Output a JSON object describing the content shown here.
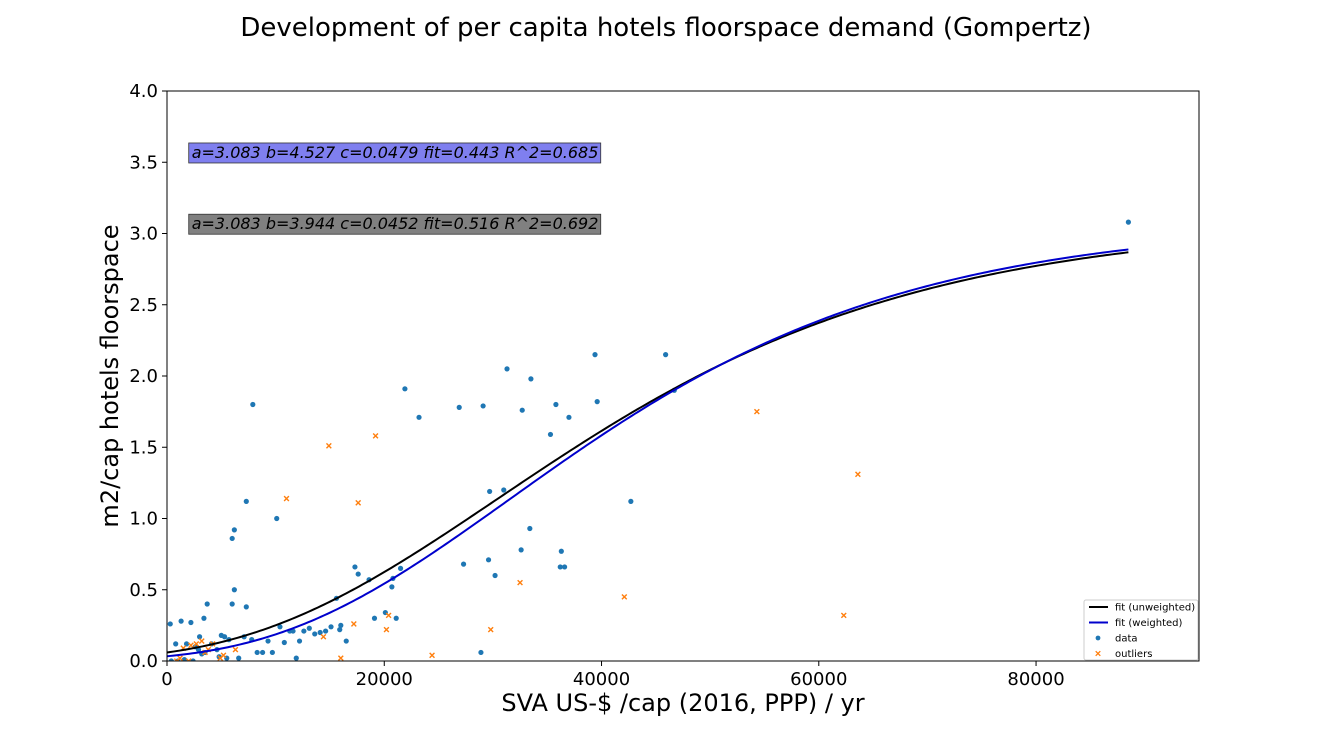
{
  "chart_data": {
    "type": "scatter",
    "title": "Development of per capita hotels floorspace demand (Gompertz)",
    "xlabel": "SVA US-$ /cap (2016, PPP) / yr",
    "ylabel": "m2/cap hotels floorspace",
    "xlim": [
      0,
      95000
    ],
    "ylim": [
      0,
      4.0
    ],
    "xticks": [
      0,
      20000,
      40000,
      60000,
      80000
    ],
    "yticks": [
      0.0,
      0.5,
      1.0,
      1.5,
      2.0,
      2.5,
      3.0,
      3.5,
      4.0
    ],
    "grid": false,
    "legend_position": "bottom-right",
    "annotations": [
      {
        "text": "a=3.083 b=4.527 c=0.0479 fit=0.443 R^2=0.685",
        "color": "#7f7fef",
        "x": 2000,
        "y": 3.53
      },
      {
        "text": "a=3.083 b=3.944 c=0.0452 fit=0.516 R^2=0.692",
        "color": "#808080",
        "x": 2000,
        "y": 3.03
      }
    ],
    "series": [
      {
        "name": "fit (unweighted)",
        "kind": "line",
        "color": "#000000",
        "model": "gompertz",
        "a": 3.083,
        "b": 3.944,
        "c": 0.0452,
        "x_range": [
          0,
          88500
        ]
      },
      {
        "name": "fit (weighted)",
        "kind": "line",
        "color": "#0000cc",
        "model": "gompertz",
        "a": 3.083,
        "b": 4.527,
        "c": 0.0479,
        "x_range": [
          0,
          88500
        ]
      },
      {
        "name": "data",
        "kind": "scatter",
        "marker": "circle",
        "color": "#1f77b4",
        "points": [
          [
            300,
            0.26
          ],
          [
            800,
            0.12
          ],
          [
            1300,
            0.28
          ],
          [
            1800,
            0.12
          ],
          [
            2200,
            0.27
          ],
          [
            2600,
            0.1
          ],
          [
            3000,
            0.17
          ],
          [
            3400,
            0.3
          ],
          [
            3700,
            0.4
          ],
          [
            4100,
            0.12
          ],
          [
            4600,
            0.08
          ],
          [
            5000,
            0.18
          ],
          [
            5300,
            0.17
          ],
          [
            5700,
            0.15
          ],
          [
            6000,
            0.4
          ],
          [
            6200,
            0.5
          ],
          [
            6000,
            0.86
          ],
          [
            6200,
            0.92
          ],
          [
            6600,
            0.02
          ],
          [
            7100,
            0.17
          ],
          [
            7300,
            1.12
          ],
          [
            7300,
            0.38
          ],
          [
            7900,
            1.8
          ],
          [
            7800,
            0.15
          ],
          [
            8300,
            0.06
          ],
          [
            8800,
            0.06
          ],
          [
            9300,
            0.14
          ],
          [
            9700,
            0.06
          ],
          [
            10100,
            1.0
          ],
          [
            10400,
            0.24
          ],
          [
            10800,
            0.13
          ],
          [
            11300,
            0.21
          ],
          [
            11600,
            0.21
          ],
          [
            11900,
            0.02
          ],
          [
            12200,
            0.14
          ],
          [
            12600,
            0.21
          ],
          [
            13100,
            0.23
          ],
          [
            13600,
            0.19
          ],
          [
            14100,
            0.2
          ],
          [
            14600,
            0.21
          ],
          [
            15100,
            0.24
          ],
          [
            15600,
            0.44
          ],
          [
            16000,
            0.25
          ],
          [
            16500,
            0.14
          ],
          [
            17300,
            0.66
          ],
          [
            17600,
            0.61
          ],
          [
            18600,
            0.57
          ],
          [
            19100,
            0.3
          ],
          [
            20100,
            0.34
          ],
          [
            20700,
            0.52
          ],
          [
            21100,
            0.3
          ],
          [
            21500,
            0.65
          ],
          [
            21900,
            1.91
          ],
          [
            23200,
            1.71
          ],
          [
            26900,
            1.78
          ],
          [
            27300,
            0.68
          ],
          [
            28900,
            0.06
          ],
          [
            29100,
            1.79
          ],
          [
            29600,
            0.71
          ],
          [
            29700,
            1.19
          ],
          [
            30200,
            0.6
          ],
          [
            31000,
            1.2
          ],
          [
            31300,
            2.05
          ],
          [
            32600,
            0.78
          ],
          [
            32700,
            1.76
          ],
          [
            33400,
            0.93
          ],
          [
            33500,
            1.98
          ],
          [
            35300,
            1.59
          ],
          [
            35800,
            1.8
          ],
          [
            36200,
            0.66
          ],
          [
            36300,
            0.77
          ],
          [
            36600,
            0.66
          ],
          [
            37000,
            1.71
          ],
          [
            39400,
            2.15
          ],
          [
            39600,
            1.82
          ],
          [
            42700,
            1.12
          ],
          [
            45900,
            2.15
          ],
          [
            46700,
            1.9
          ],
          [
            88500,
            3.08
          ],
          [
            20800,
            0.58
          ],
          [
            15900,
            0.22
          ],
          [
            3500,
            0.06
          ],
          [
            2900,
            0.08
          ],
          [
            4800,
            0.03
          ],
          [
            1000,
            0.0
          ],
          [
            400,
            0.0
          ],
          [
            1600,
            0.01
          ],
          [
            2400,
            0.0
          ],
          [
            3200,
            0.05
          ],
          [
            5500,
            0.02
          ]
        ]
      },
      {
        "name": "outliers",
        "kind": "scatter",
        "marker": "x",
        "color": "#ff7f0e",
        "points": [
          [
            14900,
            1.51
          ],
          [
            19200,
            1.58
          ],
          [
            11000,
            1.14
          ],
          [
            17600,
            1.11
          ],
          [
            54300,
            1.75
          ],
          [
            63600,
            1.31
          ],
          [
            42100,
            0.45
          ],
          [
            32500,
            0.55
          ],
          [
            62300,
            0.32
          ],
          [
            29800,
            0.22
          ],
          [
            20200,
            0.22
          ],
          [
            20400,
            0.32
          ],
          [
            17200,
            0.26
          ],
          [
            14400,
            0.17
          ],
          [
            16000,
            0.02
          ],
          [
            24400,
            0.04
          ],
          [
            4200,
            0.12
          ],
          [
            3200,
            0.14
          ],
          [
            3500,
            0.06
          ],
          [
            2200,
            0.11
          ],
          [
            1500,
            0.09
          ],
          [
            1200,
            0.02
          ],
          [
            2700,
            0.12
          ],
          [
            5200,
            0.04
          ],
          [
            4900,
            0.02
          ],
          [
            3800,
            0.08
          ],
          [
            6300,
            0.08
          ],
          [
            900,
            0.0
          ],
          [
            2000,
            0.0
          ]
        ]
      }
    ]
  }
}
